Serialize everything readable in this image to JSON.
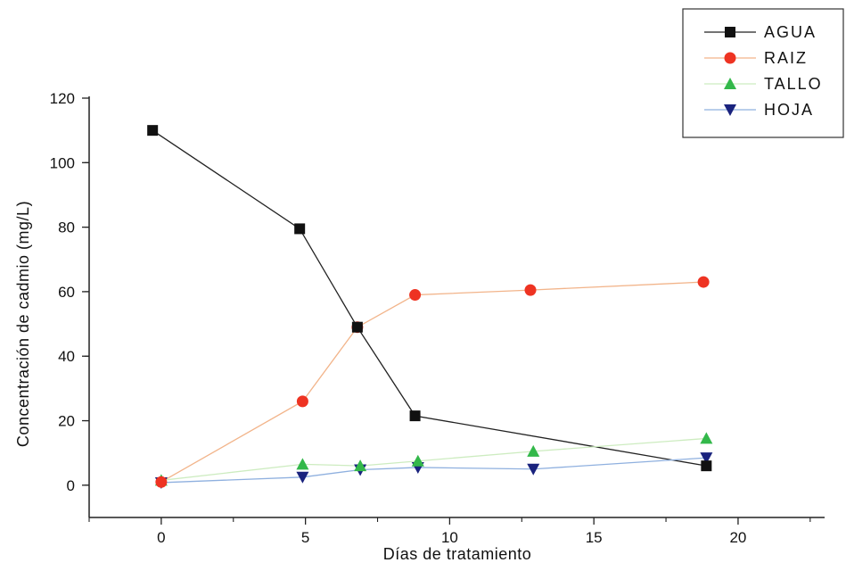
{
  "chart_data": {
    "type": "line",
    "xlabel": "Días de tratamiento",
    "ylabel": "Concentración de cadmio (mg/L)",
    "xlim": [
      -2.5,
      23
    ],
    "ylim": [
      -10,
      120
    ],
    "xticks": [
      0,
      5,
      10,
      15,
      20
    ],
    "yticks": [
      0,
      20,
      40,
      60,
      80,
      100,
      120
    ],
    "legend_position": "top-right",
    "grid": false,
    "series": [
      {
        "name": "AGUA",
        "marker": "square",
        "color": "#111111",
        "line_color": "#222222",
        "x": [
          -0.3,
          4.8,
          6.8,
          8.8,
          18.9
        ],
        "y": [
          110,
          79.5,
          49,
          21.5,
          6
        ]
      },
      {
        "name": "RAIZ",
        "marker": "circle",
        "color": "#ee3322",
        "line_color": "#f2b48a",
        "x": [
          0,
          4.9,
          6.8,
          8.8,
          12.8,
          18.8
        ],
        "y": [
          1,
          26,
          49,
          59,
          60.5,
          63
        ]
      },
      {
        "name": "TALLO",
        "marker": "triangle-up",
        "color": "#33b84a",
        "line_color": "#cdecc0",
        "x": [
          0,
          4.9,
          6.9,
          8.9,
          12.9,
          18.9
        ],
        "y": [
          1.5,
          6.5,
          6,
          7.5,
          10.5,
          14.5
        ]
      },
      {
        "name": "HOJA",
        "marker": "triangle-down",
        "color": "#1a237e",
        "line_color": "#8fb0df",
        "x": [
          0,
          4.9,
          6.9,
          8.9,
          12.9,
          18.9
        ],
        "y": [
          0.8,
          2.5,
          4.8,
          5.5,
          5,
          8.5
        ]
      }
    ]
  }
}
